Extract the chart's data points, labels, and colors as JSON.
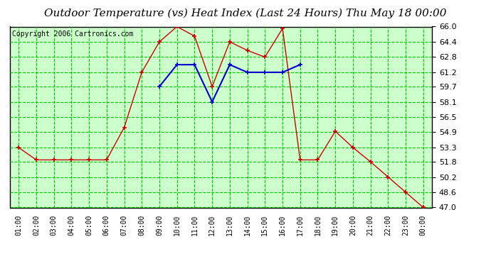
{
  "title": "Outdoor Temperature (vs) Heat Index (Last 24 Hours) Thu May 18 00:00",
  "copyright": "Copyright 2006 Cartronics.com",
  "background_color": "#ffffff",
  "plot_bg_color": "#ccffcc",
  "grid_color": "#00cc00",
  "x_labels": [
    "01:00",
    "02:00",
    "03:00",
    "04:00",
    "05:00",
    "06:00",
    "07:00",
    "08:00",
    "09:00",
    "10:00",
    "11:00",
    "12:00",
    "13:00",
    "14:00",
    "15:00",
    "16:00",
    "17:00",
    "18:00",
    "19:00",
    "20:00",
    "21:00",
    "22:00",
    "23:00",
    "00:00"
  ],
  "temp_values": [
    53.3,
    52.0,
    52.0,
    52.0,
    52.0,
    52.0,
    55.4,
    61.2,
    64.4,
    66.0,
    65.0,
    59.7,
    64.4,
    63.5,
    62.8,
    65.8,
    52.0,
    52.0,
    55.0,
    53.3,
    51.8,
    50.2,
    48.6,
    47.0
  ],
  "heat_values": [
    null,
    null,
    null,
    null,
    null,
    null,
    null,
    null,
    59.7,
    62.0,
    62.0,
    58.1,
    62.0,
    61.2,
    61.2,
    61.2,
    62.0,
    null,
    null,
    null,
    null,
    null,
    null,
    null
  ],
  "temp_color": "#cc0000",
  "heat_color": "#0000cc",
  "ylim": [
    47.0,
    66.0
  ],
  "yticks": [
    47.0,
    48.6,
    50.2,
    51.8,
    53.3,
    54.9,
    56.5,
    58.1,
    59.7,
    61.2,
    62.8,
    64.4,
    66.0
  ],
  "title_fontsize": 11,
  "copyright_fontsize": 7,
  "tick_fontsize": 8,
  "xlabel_fontsize": 7
}
